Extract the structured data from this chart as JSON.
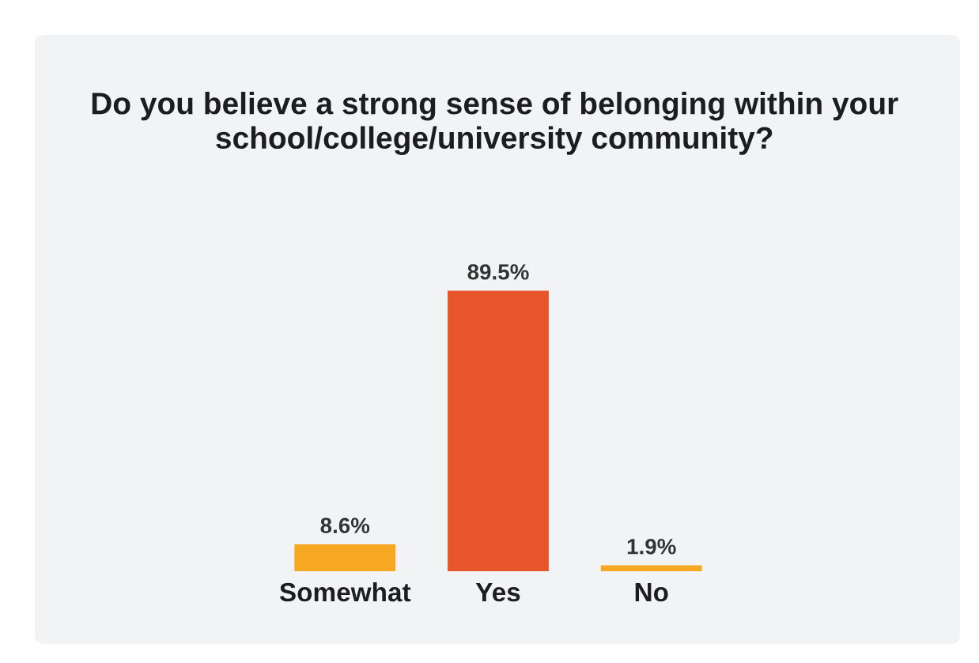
{
  "chart_data": {
    "type": "bar",
    "title": "Do you believe a strong sense of belonging within your school/college/university community?",
    "categories": [
      "Somewhat",
      "Yes",
      "No"
    ],
    "values": [
      8.6,
      89.5,
      1.9
    ],
    "colors": [
      "#f7a823",
      "#e9552b",
      "#f7a823"
    ],
    "value_labels": [
      "8.6%",
      "89.5%",
      "1.9%"
    ],
    "grid": false,
    "legend": false
  }
}
